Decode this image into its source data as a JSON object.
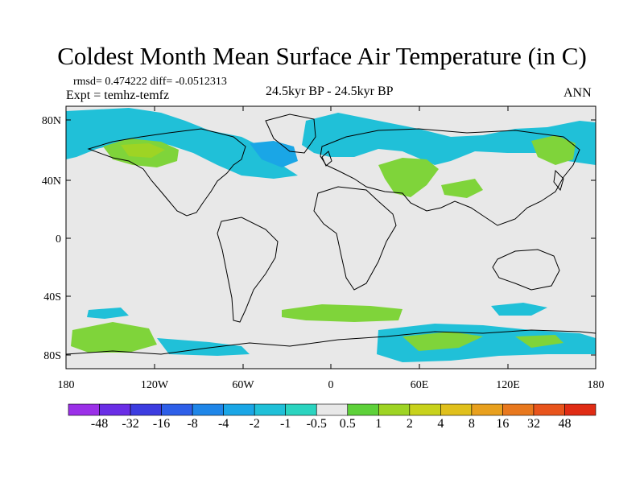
{
  "title": "Coldest Month Mean Surface Air Temperature (in C)",
  "stats": "rmsd= 0.474222 diff= -0.0512313",
  "experiment": "Expt = temhz-temfz",
  "period": "24.5kyr BP - 24.5kyr BP",
  "season": "ANN",
  "lat_ticks": [
    "80N",
    "40N",
    "0",
    "40S",
    "80S"
  ],
  "lon_ticks": [
    "180",
    "120W",
    "60W",
    "0",
    "60E",
    "120E",
    "180"
  ],
  "colorbar": {
    "labels": [
      "-48",
      "-32",
      "-16",
      "-8",
      "-4",
      "-2",
      "-1",
      "-0.5",
      "0.5",
      "1",
      "2",
      "4",
      "8",
      "16",
      "32",
      "48"
    ],
    "colors": [
      "#9b30e8",
      "#6a2ee6",
      "#3c3ce0",
      "#2e5fe8",
      "#1f86e8",
      "#1aa6e6",
      "#20c0d8",
      "#2bd4c0",
      "#e8e8e8",
      "#5ed13a",
      "#9ed424",
      "#c8d21c",
      "#e0c01c",
      "#e8a01e",
      "#e8781e",
      "#e8541c",
      "#e02c14"
    ]
  },
  "colors": {
    "background_ocean": "#e8e8e8",
    "cool_anomaly": "#20c0d8",
    "strong_cool": "#1aa6e6",
    "warm_anomaly": "#7fd43a",
    "coastline": "#000000"
  }
}
